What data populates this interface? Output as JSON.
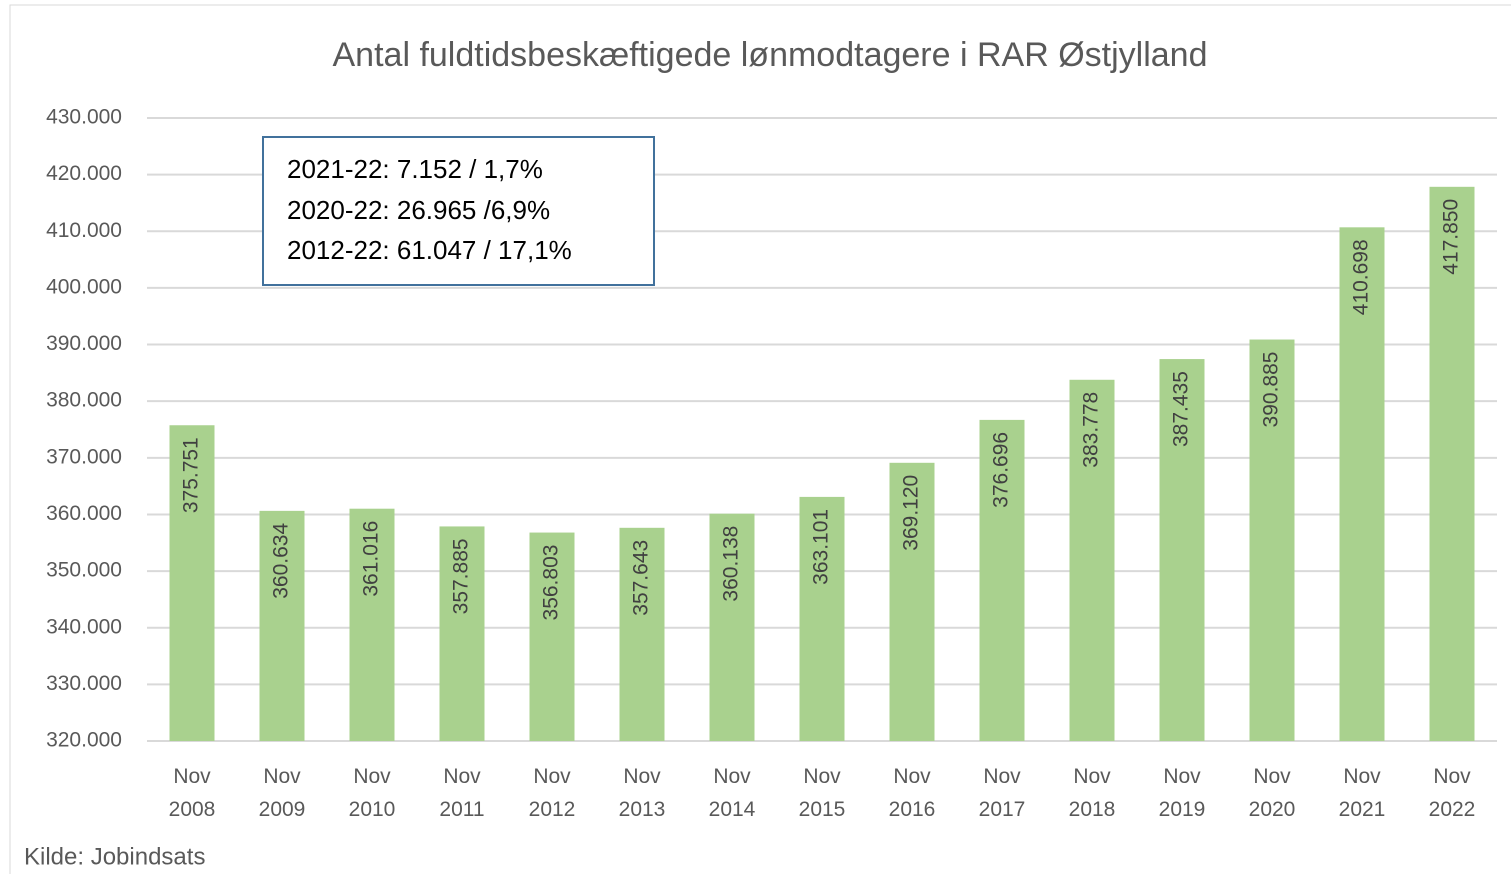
{
  "chart_data": {
    "type": "bar",
    "title": "Antal fuldtidsbeskæftigede lønmodtagere i RAR Østjylland",
    "categories": [
      "Nov 2008",
      "Nov 2009",
      "Nov 2010",
      "Nov 2011",
      "Nov 2012",
      "Nov 2013",
      "Nov 2014",
      "Nov 2015",
      "Nov 2016",
      "Nov 2017",
      "Nov 2018",
      "Nov 2019",
      "Nov 2020",
      "Nov 2021",
      "Nov 2022"
    ],
    "values": [
      375751,
      360634,
      361016,
      357885,
      356803,
      357643,
      360138,
      363101,
      369120,
      376696,
      383778,
      387435,
      390885,
      410698,
      417850
    ],
    "value_labels": [
      "375.751",
      "360.634",
      "361.016",
      "357.885",
      "356.803",
      "357.643",
      "360.138",
      "363.101",
      "369.120",
      "376.696",
      "383.778",
      "387.435",
      "390.885",
      "410.698",
      "417.850"
    ],
    "color": "#a9d18e",
    "ylim": [
      320000,
      430000
    ],
    "yticks": [
      {
        "value": 320000,
        "label": "320.000"
      },
      {
        "value": 330000,
        "label": "330.000"
      },
      {
        "value": 340000,
        "label": "340.000"
      },
      {
        "value": 350000,
        "label": "350.000"
      },
      {
        "value": 360000,
        "label": "360.000"
      },
      {
        "value": 370000,
        "label": "370.000"
      },
      {
        "value": 380000,
        "label": "380.000"
      },
      {
        "value": 390000,
        "label": "390.000"
      },
      {
        "value": 400000,
        "label": "400.000"
      },
      {
        "value": 410000,
        "label": "410.000"
      },
      {
        "value": 420000,
        "label": "420.000"
      },
      {
        "value": 430000,
        "label": "430.000"
      }
    ],
    "grid": true,
    "annotations": [
      "2021-22: 7.152 / 1,7%",
      "2020-22: 26.965 /6,9%",
      "2012-22: 61.047 / 17,1%"
    ],
    "source": "Kilde: Jobindsats"
  }
}
